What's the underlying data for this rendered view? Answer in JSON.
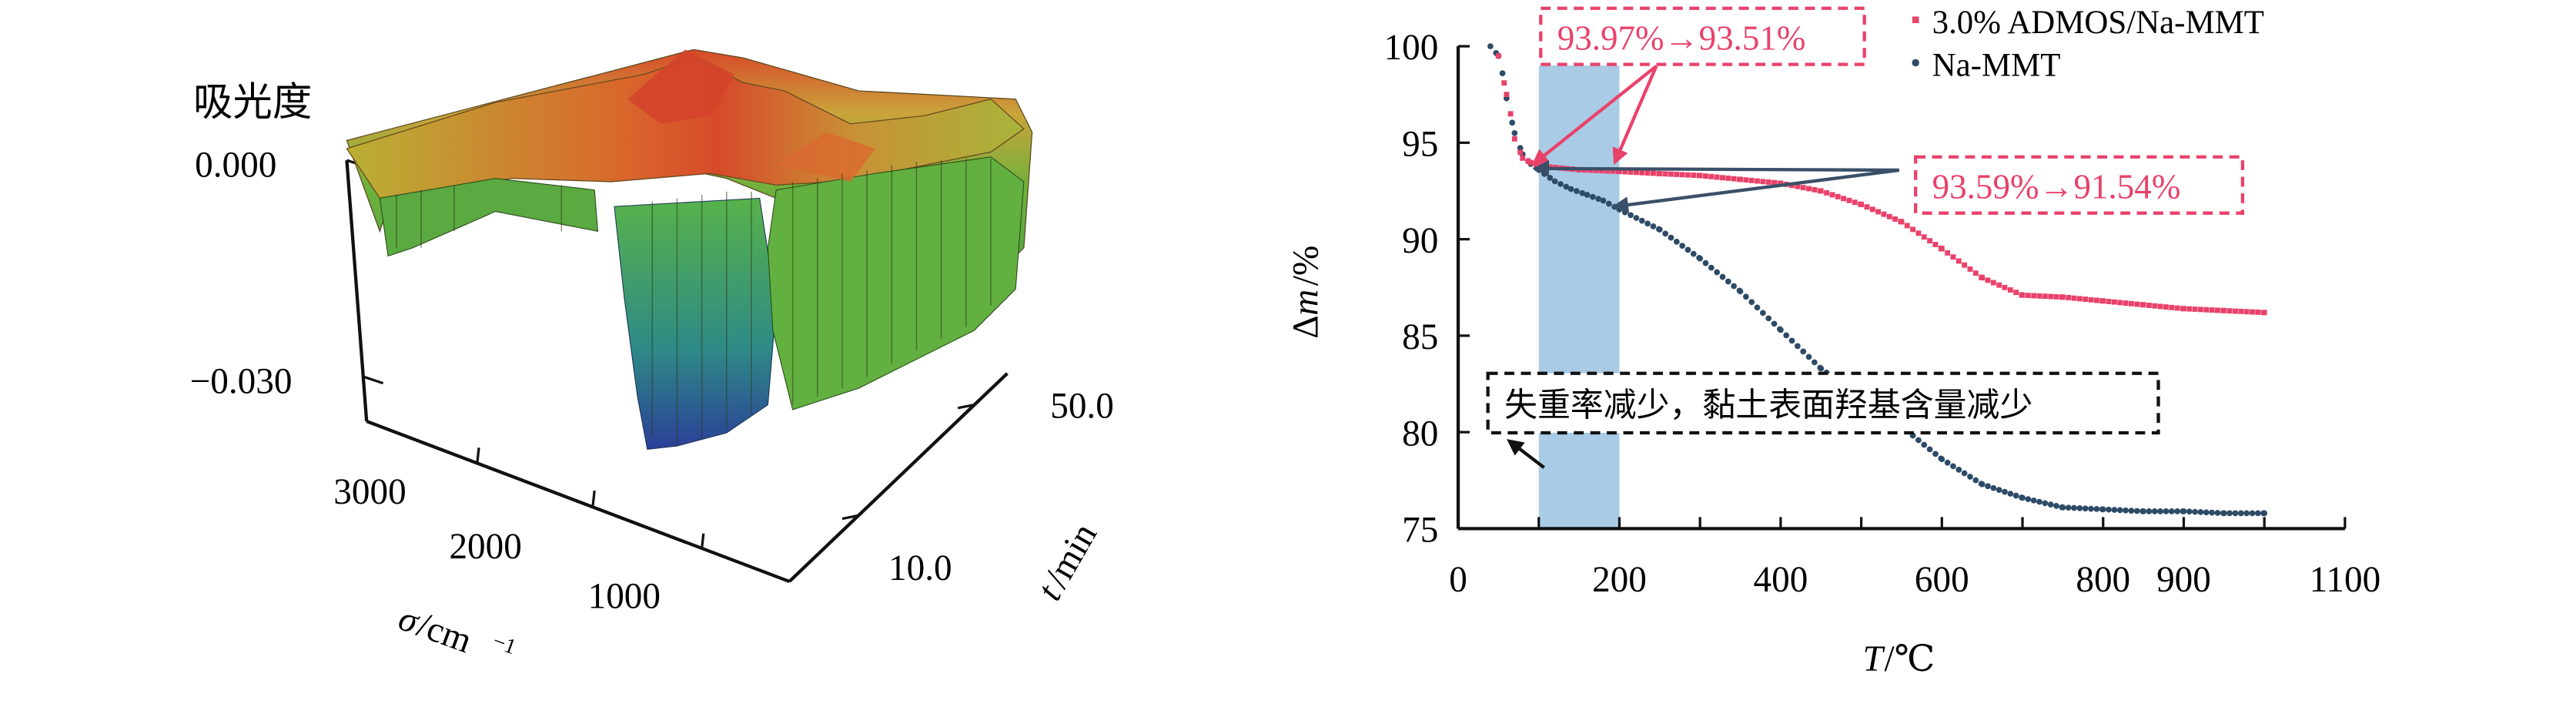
{
  "left_panel": {
    "z_label": "吸光度",
    "z_ticks": [
      "0.000",
      "−0.030"
    ],
    "x_ticks": [
      "3000",
      "2000",
      "1000"
    ],
    "y_ticks": [
      "50.0",
      "10.0"
    ],
    "x_label_var": "σ",
    "x_label_unit": "/cm",
    "x_label_sup": "−1",
    "y_label_var": "t",
    "y_label_unit": "/min"
  },
  "right_panel": {
    "callout_red": "93.97%→93.51%",
    "callout_blue": "93.59%→91.54%",
    "annotation": "失重率减少，黏土表面羟基含量减少",
    "colors": {
      "admos": "#e8426a",
      "mmt": "#2d4a66",
      "band": "#a9cbe6",
      "arrow_blue": "#3a5068"
    }
  },
  "chart_data": [
    {
      "type": "surface3d",
      "zlabel": "吸光度",
      "z_ticks": [
        0.0,
        -0.03
      ],
      "x_ticks": [
        3000,
        2000,
        1000
      ],
      "xlabel": "σ/cm−1",
      "y_ticks": [
        50.0,
        10.0
      ],
      "ylabel": "t/min"
    },
    {
      "type": "scatter",
      "xlabel": "T/℃",
      "ylabel": "Δm/%",
      "xlim": [
        0,
        1100
      ],
      "ylim": [
        75,
        100
      ],
      "x_ticks": [
        0,
        200,
        400,
        600,
        800,
        900,
        1100
      ],
      "y_ticks": [
        75,
        80,
        85,
        90,
        95,
        100
      ],
      "legend_position": "top-right",
      "highlight_band_x": [
        100,
        200
      ],
      "series": [
        {
          "name": "3.0% ADMOS/Na-MMT",
          "color": "#e8426a",
          "x": [
            50,
            60,
            65,
            70,
            80,
            90,
            100,
            150,
            200,
            250,
            300,
            350,
            400,
            450,
            500,
            550,
            600,
            650,
            700,
            750,
            800,
            850,
            900,
            950,
            1000
          ],
          "y": [
            99.5,
            97.5,
            96.5,
            95.2,
            94.2,
            93.97,
            93.8,
            93.6,
            93.51,
            93.4,
            93.3,
            93.1,
            92.9,
            92.5,
            91.8,
            90.9,
            89.5,
            88.0,
            87.1,
            87.0,
            86.8,
            86.6,
            86.4,
            86.3,
            86.2
          ]
        },
        {
          "name": "Na-MMT",
          "color": "#2d4a66",
          "x": [
            40,
            50,
            55,
            60,
            70,
            80,
            90,
            100,
            120,
            140,
            160,
            180,
            200,
            250,
            300,
            350,
            400,
            450,
            500,
            550,
            600,
            650,
            700,
            750,
            800,
            850,
            900,
            950,
            1000
          ],
          "y": [
            100,
            99.5,
            98.6,
            97.3,
            95.5,
            94.4,
            93.9,
            93.59,
            93.0,
            92.6,
            92.3,
            92.0,
            91.54,
            90.5,
            89.0,
            87.3,
            85.3,
            83.3,
            81.8,
            80.3,
            78.6,
            77.3,
            76.6,
            76.1,
            76.0,
            75.9,
            75.9,
            75.8,
            75.8
          ]
        }
      ],
      "annotations": [
        "93.97%→93.51%",
        "93.59%→91.54%",
        "失重率减少，黏土表面羟基含量减少"
      ]
    }
  ]
}
